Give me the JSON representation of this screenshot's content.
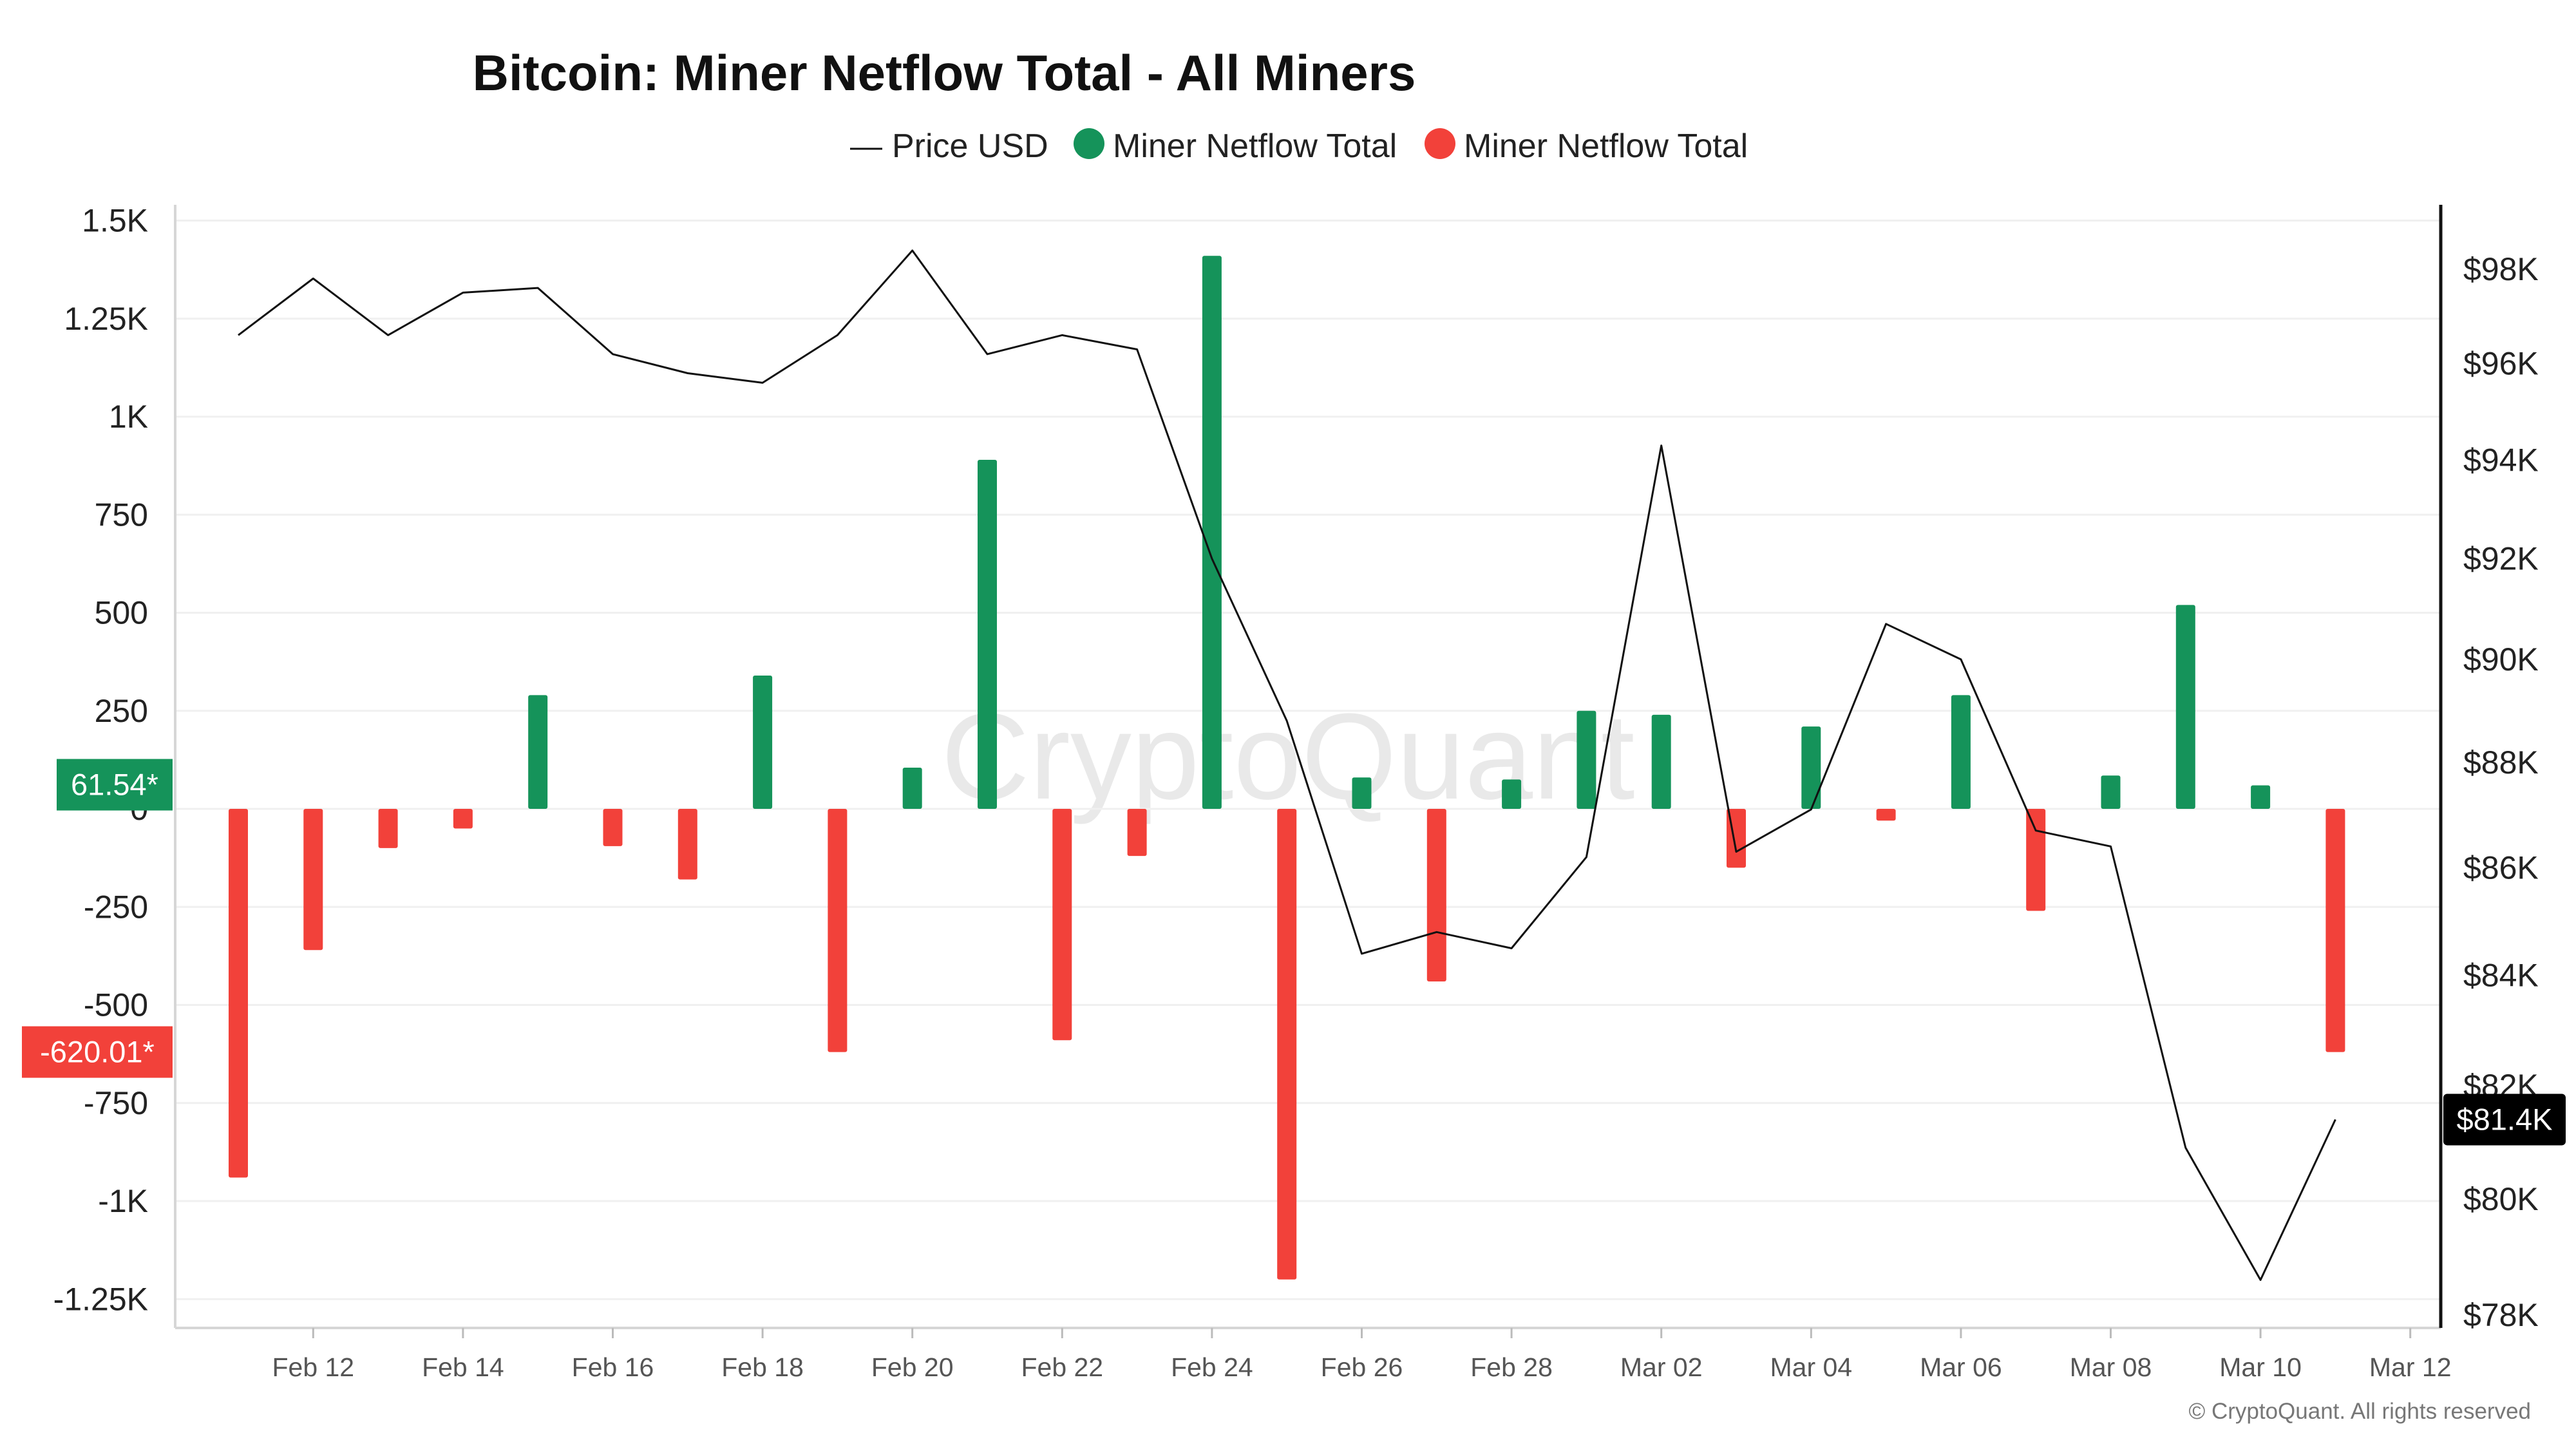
{
  "watermark": "CryptoQuant",
  "footer": "© CryptoQuant. All rights reserved",
  "colors": {
    "positive": "#15935a",
    "negative": "#f2413a",
    "price_line": "#111111",
    "price_badge": "#000000",
    "grid": "#f0f0f0"
  },
  "chart_data": {
    "type": "bar",
    "title": "Bitcoin: Miner Netflow Total - All Miners",
    "legend": [
      "Price USD",
      "Miner Netflow Total",
      "Miner Netflow Total"
    ],
    "x_ticks": [
      "Feb 12",
      "Feb 14",
      "Feb 16",
      "Feb 18",
      "Feb 20",
      "Feb 22",
      "Feb 24",
      "Feb 26",
      "Feb 28",
      "Mar 02",
      "Mar 04",
      "Mar 06",
      "Mar 08",
      "Mar 10",
      "Mar 12"
    ],
    "y_left": {
      "ticks": [
        1500,
        1250,
        1000,
        750,
        500,
        250,
        0,
        -250,
        -500,
        -750,
        -1000,
        -1250
      ],
      "tick_labels": [
        "1.5K",
        "1.25K",
        "1K",
        "750",
        "500",
        "250",
        "0",
        "-250",
        "-500",
        "-750",
        "-1K",
        "-1.25K"
      ],
      "range": [
        -1350,
        1500
      ]
    },
    "y_right": {
      "ticks": [
        98000,
        96000,
        94000,
        92000,
        90000,
        88000,
        86000,
        84000,
        82000,
        80000,
        78000
      ],
      "tick_labels": [
        "$98K",
        "$96K",
        "$94K",
        "$92K",
        "$90K",
        "$88K",
        "$86K",
        "$84K",
        "$82K",
        "$80K",
        "$78K"
      ],
      "scale": "log"
    },
    "netflow_series": {
      "name": "Miner Netflow Total",
      "dates": [
        "Feb 11",
        "Feb 12",
        "Feb 13",
        "Feb 14",
        "Feb 15",
        "Feb 16",
        "Feb 17",
        "Feb 18",
        "Feb 19",
        "Feb 20",
        "Feb 21",
        "Feb 22",
        "Feb 23",
        "Feb 24",
        "Feb 25",
        "Feb 26",
        "Feb 27",
        "Feb 28",
        "Mar 01",
        "Mar 02",
        "Mar 03",
        "Mar 04",
        "Mar 05",
        "Mar 06",
        "Mar 07",
        "Mar 08",
        "Mar 09",
        "Mar 10",
        "Mar 11"
      ],
      "values": [
        -940,
        -360,
        -100,
        -50,
        290,
        -95,
        -180,
        340,
        -620,
        105,
        890,
        -590,
        -120,
        1410,
        -1200,
        80,
        -440,
        75,
        250,
        240,
        -150,
        210,
        -30,
        290,
        -260,
        85,
        520,
        60,
        -620
      ]
    },
    "price_series": {
      "name": "Price USD",
      "dates": [
        "Feb 11",
        "Feb 12",
        "Feb 13",
        "Feb 14",
        "Feb 15",
        "Feb 16",
        "Feb 17",
        "Feb 18",
        "Feb 19",
        "Feb 20",
        "Feb 21",
        "Feb 22",
        "Feb 23",
        "Feb 24",
        "Feb 25",
        "Feb 26",
        "Feb 27",
        "Feb 28",
        "Mar 01",
        "Mar 02",
        "Mar 03",
        "Mar 04",
        "Mar 05",
        "Mar 06",
        "Mar 07",
        "Mar 08",
        "Mar 09",
        "Mar 10",
        "Mar 11"
      ],
      "values": [
        96600,
        97800,
        96600,
        97500,
        97600,
        96200,
        95800,
        95600,
        96600,
        98400,
        96200,
        96600,
        96300,
        92000,
        88800,
        84400,
        84800,
        84500,
        86200,
        94300,
        86300,
        87100,
        90700,
        90000,
        86700,
        86400,
        80900,
        78600,
        81400
      ]
    },
    "badges": {
      "netflow_positive": "61.54*",
      "netflow_negative": "-620.01*",
      "price": "$81.4K"
    },
    "grid": true,
    "legend_position": "top-center"
  }
}
